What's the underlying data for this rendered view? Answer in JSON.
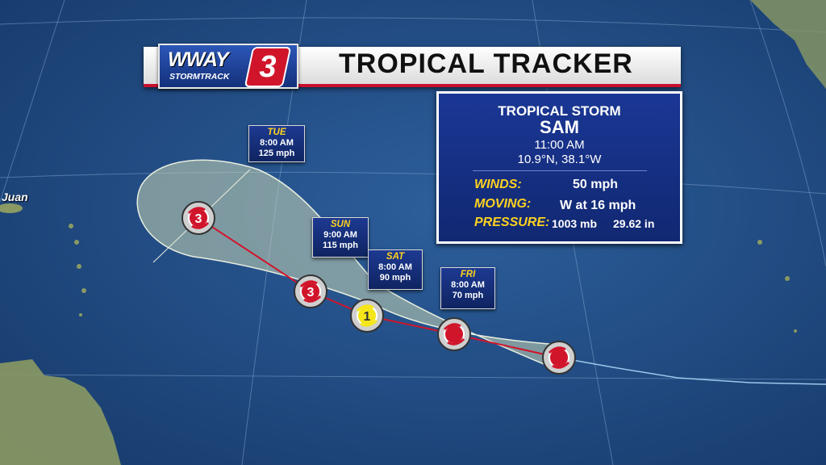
{
  "header": {
    "station": "WWAY",
    "station_sub": "STORMTRACK",
    "channel": "3",
    "title": "TROPICAL TRACKER"
  },
  "storm": {
    "classification": "TROPICAL STORM",
    "name": "SAM",
    "advisory_time": "11:00 AM",
    "position": "10.9°N, 38.1°W",
    "winds_label": "WINDS:",
    "winds_value": "50 mph",
    "moving_label": "MOVING:",
    "moving_value": "W at 16 mph",
    "pressure_label": "PRESSURE:",
    "pressure_mb": "1003 mb",
    "pressure_in": "29.62 in"
  },
  "forecast_points": [
    {
      "id": "current",
      "symbol": "tropical-storm-icon",
      "label": "",
      "color": "#d0152b"
    },
    {
      "id": "fri",
      "symbol": "tropical-storm-icon",
      "label": "",
      "color": "#d0152b"
    },
    {
      "id": "sat",
      "symbol": "hurricane-category-icon",
      "label": "1",
      "color": "#f5e61a"
    },
    {
      "id": "sun",
      "symbol": "hurricane-category-icon",
      "label": "3",
      "color": "#d0152b"
    },
    {
      "id": "tue",
      "symbol": "hurricane-category-icon",
      "label": "3",
      "color": "#d0152b"
    }
  ],
  "forecast_labels": {
    "fri": {
      "day": "FRI",
      "time": "8:00 AM",
      "wind": "70 mph"
    },
    "sat": {
      "day": "SAT",
      "time": "8:00 AM",
      "wind": "90 mph"
    },
    "sun": {
      "day": "SUN",
      "time": "9:00 AM",
      "wind": "115 mph"
    },
    "tue": {
      "day": "TUE",
      "time": "8:00 AM",
      "wind": "125 mph"
    }
  },
  "map": {
    "place_label": "Juan",
    "colors": {
      "ocean": "#1f4a80",
      "cone": "#c9d6b4",
      "track": "#d0152b",
      "land": "#8b9a63"
    }
  }
}
